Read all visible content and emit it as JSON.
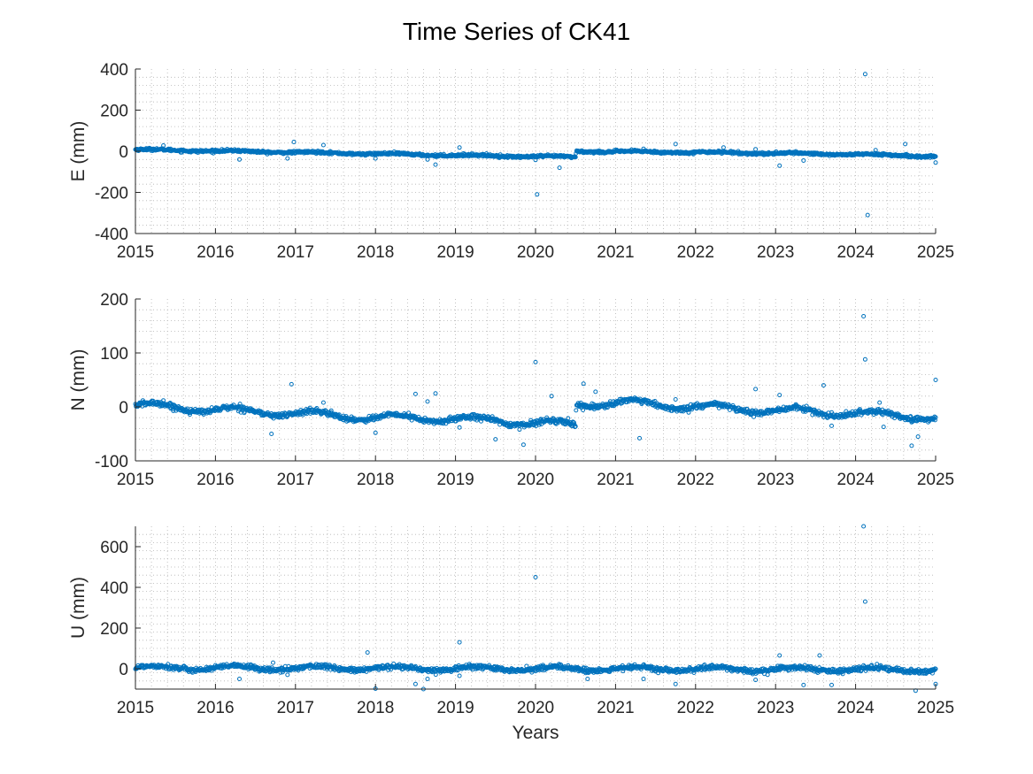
{
  "title": "Time Series of CK41",
  "colors": {
    "marker": "#0072BD",
    "axis": "#262626",
    "grid": "#b4b4b4"
  },
  "chart_data": [
    {
      "type": "scatter",
      "ylabel": "E (mm)",
      "xlabel": "",
      "xlim": [
        2015,
        2025
      ],
      "ylim": [
        -400,
        400
      ],
      "xticks": [
        2015,
        2016,
        2017,
        2018,
        2019,
        2020,
        2021,
        2022,
        2023,
        2024,
        2025
      ],
      "yticks": [
        -400,
        -200,
        0,
        200,
        400
      ],
      "grid": "minor dotted",
      "trend": [
        [
          2015.0,
          8
        ],
        [
          2017.0,
          -5
        ],
        [
          2019.0,
          -20
        ],
        [
          2020.5,
          -28
        ],
        [
          2020.51,
          0
        ],
        [
          2022.0,
          -5
        ],
        [
          2024.0,
          -15
        ],
        [
          2025.0,
          -25
        ]
      ],
      "seasonal_amplitude": 3,
      "noise": 3,
      "outliers": [
        [
          2015.35,
          28
        ],
        [
          2016.3,
          -40
        ],
        [
          2016.98,
          45
        ],
        [
          2016.9,
          -35
        ],
        [
          2017.35,
          30
        ],
        [
          2018.0,
          -35
        ],
        [
          2018.65,
          -40
        ],
        [
          2018.75,
          -65
        ],
        [
          2019.05,
          18
        ],
        [
          2020.0,
          -42
        ],
        [
          2020.02,
          -210
        ],
        [
          2020.3,
          -80
        ],
        [
          2021.35,
          12
        ],
        [
          2021.75,
          35
        ],
        [
          2022.35,
          18
        ],
        [
          2022.75,
          10
        ],
        [
          2023.05,
          -70
        ],
        [
          2023.35,
          -45
        ],
        [
          2024.12,
          375
        ],
        [
          2024.15,
          -310
        ],
        [
          2024.25,
          5
        ],
        [
          2024.62,
          35
        ],
        [
          2025.0,
          -55
        ]
      ]
    },
    {
      "type": "scatter",
      "ylabel": "N (mm)",
      "xlabel": "",
      "xlim": [
        2015,
        2025
      ],
      "ylim": [
        -100,
        200
      ],
      "xticks": [
        2015,
        2016,
        2017,
        2018,
        2019,
        2020,
        2021,
        2022,
        2023,
        2024,
        2025
      ],
      "yticks": [
        -100,
        0,
        100,
        200
      ],
      "grid": "minor dotted",
      "trend": [
        [
          2015.0,
          3
        ],
        [
          2016.0,
          -5
        ],
        [
          2017.0,
          -12
        ],
        [
          2018.0,
          -20
        ],
        [
          2019.0,
          -22
        ],
        [
          2020.5,
          -33
        ],
        [
          2020.51,
          5
        ],
        [
          2021.0,
          8
        ],
        [
          2022.0,
          0
        ],
        [
          2023.0,
          -7
        ],
        [
          2024.0,
          -12
        ],
        [
          2025.0,
          -20
        ]
      ],
      "seasonal_amplitude": 6,
      "noise": 2.5,
      "outliers": [
        [
          2015.35,
          12
        ],
        [
          2016.7,
          -50
        ],
        [
          2016.95,
          42
        ],
        [
          2017.35,
          8
        ],
        [
          2018.0,
          -48
        ],
        [
          2018.5,
          24
        ],
        [
          2018.65,
          10
        ],
        [
          2018.75,
          25
        ],
        [
          2019.05,
          -38
        ],
        [
          2019.5,
          -60
        ],
        [
          2019.8,
          -42
        ],
        [
          2019.85,
          -70
        ],
        [
          2020.0,
          83
        ],
        [
          2020.2,
          20
        ],
        [
          2020.6,
          43
        ],
        [
          2020.75,
          28
        ],
        [
          2021.3,
          -58
        ],
        [
          2021.75,
          14
        ],
        [
          2022.75,
          33
        ],
        [
          2023.05,
          22
        ],
        [
          2023.35,
          0
        ],
        [
          2023.6,
          40
        ],
        [
          2023.7,
          -35
        ],
        [
          2024.1,
          168
        ],
        [
          2024.12,
          88
        ],
        [
          2024.3,
          8
        ],
        [
          2024.35,
          -37
        ],
        [
          2024.7,
          -72
        ],
        [
          2024.78,
          -55
        ],
        [
          2025.0,
          50
        ]
      ]
    },
    {
      "type": "scatter",
      "ylabel": "U (mm)",
      "xlabel": "Years",
      "xlim": [
        2015,
        2025
      ],
      "ylim": [
        -100,
        700
      ],
      "xticks": [
        2015,
        2016,
        2017,
        2018,
        2019,
        2020,
        2021,
        2022,
        2023,
        2024,
        2025
      ],
      "yticks": [
        0,
        200,
        400,
        600
      ],
      "grid": "minor dotted",
      "trend": [
        [
          2015.0,
          5
        ],
        [
          2020.0,
          0
        ],
        [
          2025.0,
          -5
        ]
      ],
      "seasonal_amplitude": 10,
      "noise": 6,
      "outliers": [
        [
          2016.3,
          -50
        ],
        [
          2016.72,
          30
        ],
        [
          2016.9,
          -30
        ],
        [
          2017.9,
          80
        ],
        [
          2018.0,
          -98
        ],
        [
          2018.5,
          -75
        ],
        [
          2018.6,
          -100
        ],
        [
          2018.65,
          -50
        ],
        [
          2019.05,
          130
        ],
        [
          2019.05,
          -35
        ],
        [
          2020.0,
          450
        ],
        [
          2020.65,
          -50
        ],
        [
          2021.35,
          -50
        ],
        [
          2021.75,
          -75
        ],
        [
          2022.75,
          -55
        ],
        [
          2023.05,
          65
        ],
        [
          2023.35,
          -80
        ],
        [
          2023.55,
          65
        ],
        [
          2023.7,
          -80
        ],
        [
          2024.1,
          700
        ],
        [
          2024.12,
          330
        ],
        [
          2024.75,
          -108
        ],
        [
          2025.0,
          -75
        ]
      ]
    }
  ]
}
